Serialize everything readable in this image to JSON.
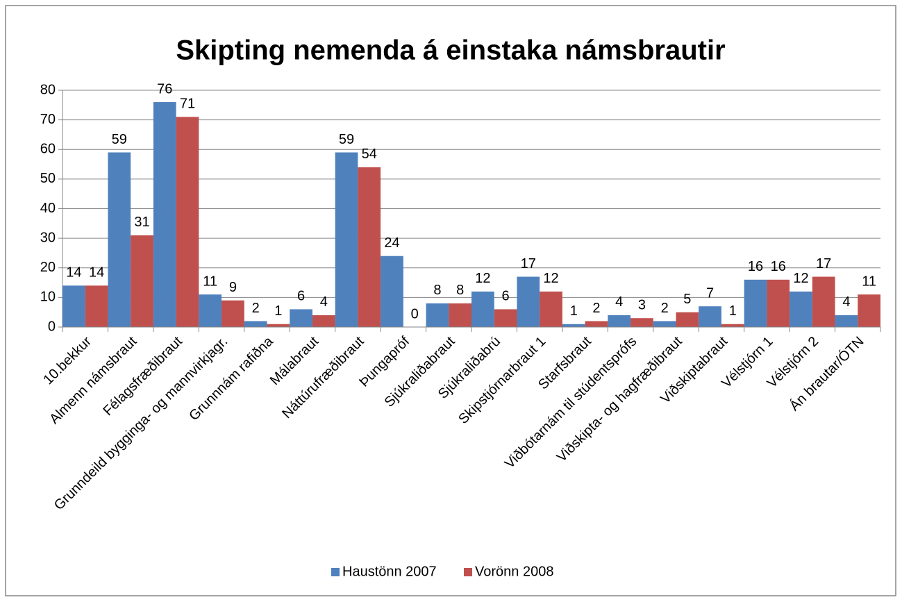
{
  "chart_data": {
    "type": "bar",
    "title": "Skipting nemenda á einstaka námsbrautir",
    "categories": [
      "10.bekkur",
      "Almenn námsbraut",
      "Félagsfræðibraut",
      "Grunndeild bygginga- og mannvirkjagr.",
      "Grunnnám rafiðna",
      "Málabraut",
      "Náttúrufræðibraut",
      "Þungapróf",
      "Sjúkraliðabraut",
      "Sjúkraliðabrú",
      "Skipstjórnarbraut 1",
      "Starfsbraut",
      "Viðbótarnám til stúdentsprófs",
      "Viðskipta- og hagfræðibraut",
      "Viðskiptabraut",
      "Vélstjórn 1",
      "Vélstjórn 2",
      "Án brautar/ÓTN"
    ],
    "series": [
      {
        "name": "Haustönn 2007",
        "color": "#4f81bd",
        "values": [
          14,
          59,
          76,
          11,
          2,
          6,
          59,
          24,
          8,
          12,
          17,
          1,
          4,
          2,
          7,
          16,
          12,
          4
        ]
      },
      {
        "name": "Vorönn 2008",
        "color": "#c0504d",
        "values": [
          14,
          31,
          71,
          9,
          1,
          4,
          54,
          0,
          8,
          6,
          12,
          2,
          3,
          5,
          1,
          16,
          17,
          11
        ]
      }
    ],
    "ylim": [
      0,
      80
    ],
    "yticks": [
      0,
      10,
      20,
      30,
      40,
      50,
      60,
      70,
      80
    ],
    "grid": true,
    "legend": "bottom"
  }
}
